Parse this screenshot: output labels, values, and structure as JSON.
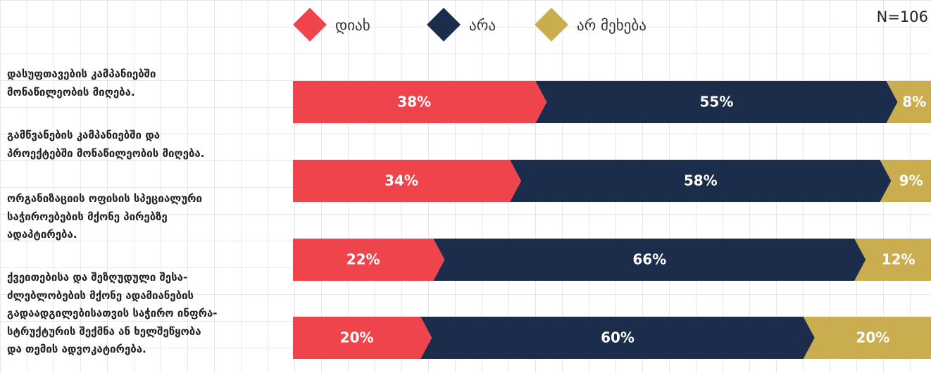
{
  "chart_data": {
    "type": "stacked-bar-horizontal",
    "note_n": "N=106",
    "categories": [
      "დასუფთავების კამპანიებში\nმონაწილეობის მიღება.",
      "გამწვანების კამპანიებში და\nპროექტებში მონაწილეობის მიღება.",
      "ორგანიზაციის ოფისის სპეციალური\nსაჭიროებების მქონე პირებზე\nადაპტირება.",
      "ქვეითებისა და შეზღუდული შესა-\nძლებლობების მქონე ადამიანების\nგადაადგილებისათვის საჭირო ინფრა-\nსტრუქტურის შექმნა ან ხელშეწყობა\nდა თემის ადვოკატირება."
    ],
    "series": [
      {
        "name": "დიახ",
        "color": "#ef444c",
        "values": [
          38,
          34,
          22,
          20
        ],
        "value_labels": [
          "38%",
          "34%",
          "22%",
          "20%"
        ]
      },
      {
        "name": "არა",
        "color": "#1b2d4b",
        "values": [
          55,
          58,
          66,
          60
        ],
        "value_labels": [
          "55%",
          "58%",
          "66%",
          "60%"
        ]
      },
      {
        "name": "არ მეხება",
        "color": "#c9ad4f",
        "values": [
          8,
          9,
          12,
          20
        ],
        "value_labels": [
          "8%",
          "9%",
          "12%",
          "20%"
        ]
      }
    ],
    "xlim": [
      0,
      100
    ]
  }
}
